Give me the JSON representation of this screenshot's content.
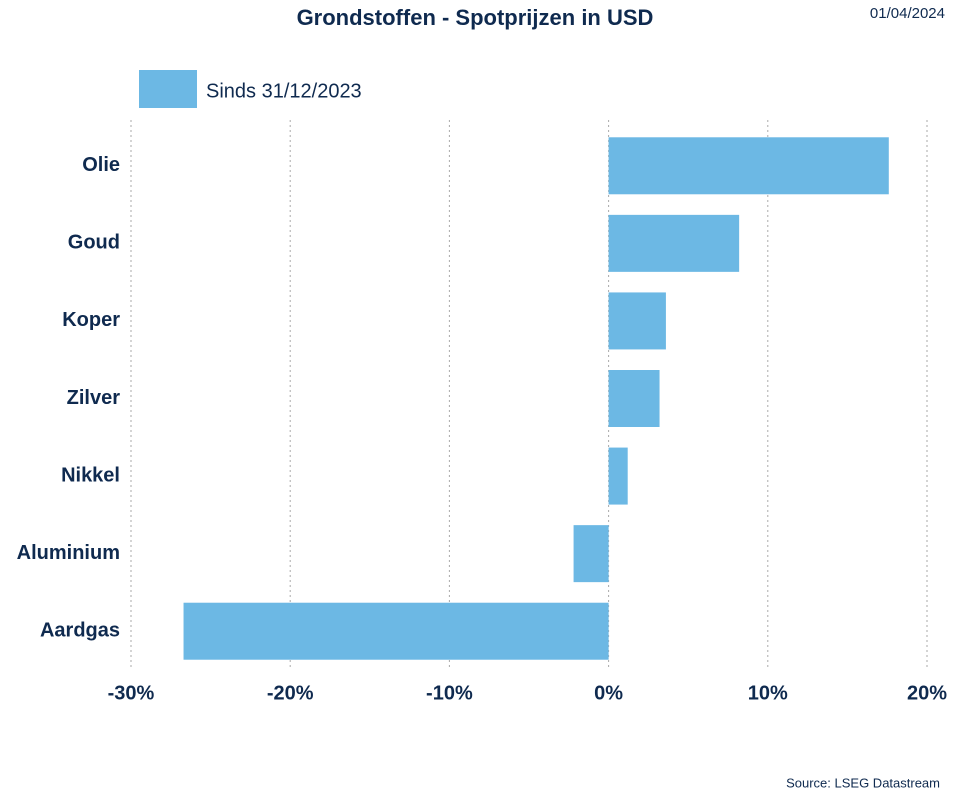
{
  "chart_data": {
    "type": "hbar",
    "title": "Grondstoffen - Spotprijzen in USD",
    "date": "01/04/2024",
    "source": "Source: LSEG Datastream",
    "categories": [
      "Olie",
      "Goud",
      "Koper",
      "Zilver",
      "Nikkel",
      "Aluminium",
      "Aardgas"
    ],
    "series": [
      {
        "name": "Sinds 31/12/2023",
        "color": "#6cb8e4",
        "values": [
          17.6,
          8.2,
          3.6,
          3.2,
          1.2,
          -2.2,
          -26.7
        ]
      }
    ],
    "xlim": [
      -30,
      20
    ],
    "xticks": [
      {
        "value": -30,
        "label": "-30%"
      },
      {
        "value": -20,
        "label": "-20%"
      },
      {
        "value": -10,
        "label": "-10%"
      },
      {
        "value": 0,
        "label": "0%"
      },
      {
        "value": 10,
        "label": "10%"
      },
      {
        "value": 20,
        "label": "20%"
      }
    ],
    "grid": true
  }
}
